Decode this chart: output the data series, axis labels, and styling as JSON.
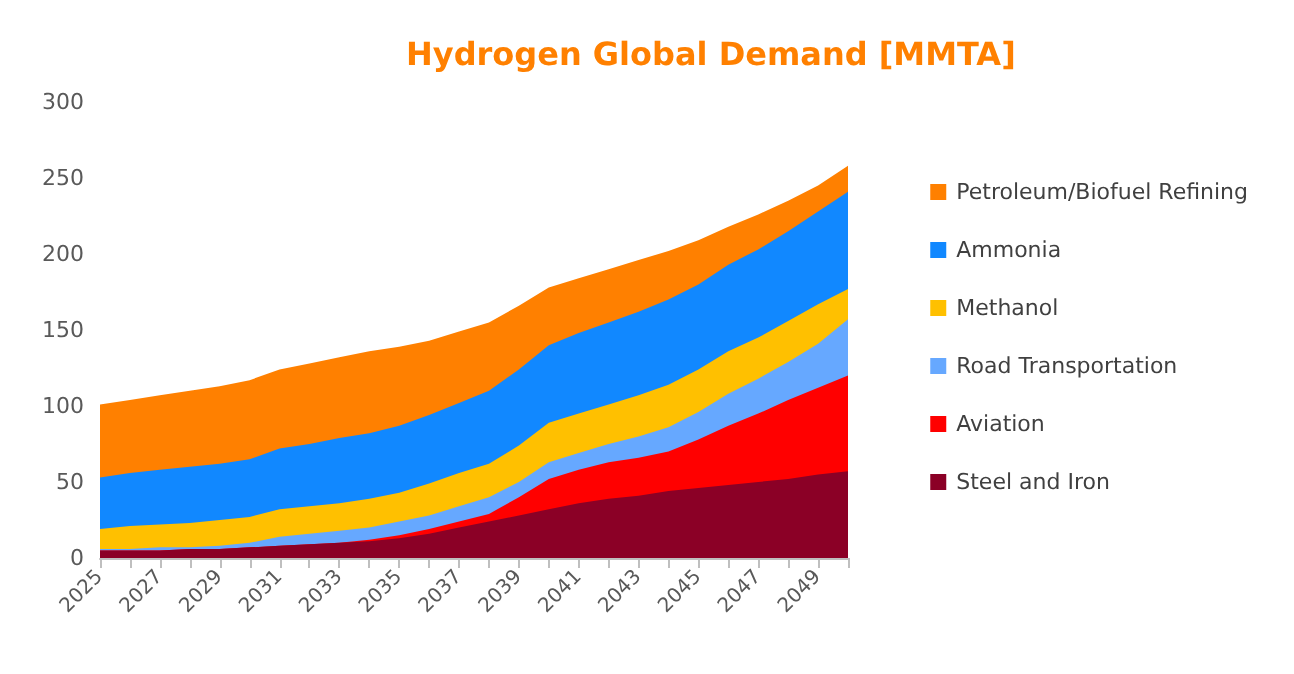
{
  "chart_data": {
    "type": "area",
    "stacked": true,
    "title": "Hydrogen Global Demand [MMTA]",
    "x": [
      2025,
      2026,
      2027,
      2028,
      2029,
      2030,
      2031,
      2032,
      2033,
      2034,
      2035,
      2036,
      2037,
      2038,
      2039,
      2040,
      2041,
      2042,
      2043,
      2044,
      2045,
      2046,
      2047,
      2048,
      2049,
      2050
    ],
    "series": [
      {
        "name": "Steel and Iron",
        "color": "#8b0026",
        "values": [
          5,
          5,
          5,
          6,
          6,
          7,
          8,
          9,
          10,
          11,
          13,
          16,
          20,
          24,
          28,
          32,
          36,
          39,
          41,
          44,
          46,
          48,
          50,
          52,
          55,
          57
        ]
      },
      {
        "name": "Aviation",
        "color": "#ff0000",
        "values": [
          0,
          0,
          0,
          0,
          0,
          0,
          0,
          0,
          0,
          1,
          2,
          3,
          4,
          5,
          12,
          20,
          22,
          24,
          25,
          26,
          32,
          39,
          45,
          52,
          57,
          63
        ]
      },
      {
        "name": "Road Transportation",
        "color": "#66a8ff",
        "values": [
          1,
          1,
          2,
          1,
          2,
          3,
          6,
          7,
          8,
          8,
          9,
          9,
          10,
          11,
          10,
          11,
          11,
          12,
          14,
          16,
          18,
          21,
          23,
          25,
          29,
          37
        ]
      },
      {
        "name": "Methanol",
        "color": "#ffc000",
        "values": [
          13,
          15,
          15,
          16,
          17,
          17,
          18,
          18,
          18,
          19,
          19,
          21,
          22,
          22,
          24,
          26,
          26,
          26,
          27,
          28,
          28,
          28,
          27,
          27,
          26,
          20
        ]
      },
      {
        "name": "Ammonia",
        "color": "#1188ff",
        "values": [
          34,
          35,
          36,
          37,
          37,
          38,
          40,
          41,
          43,
          43,
          44,
          45,
          46,
          48,
          50,
          51,
          53,
          54,
          55,
          56,
          56,
          57,
          58,
          59,
          61,
          64
        ]
      },
      {
        "name": "Petroleum/Biofuel Refining",
        "color": "#ff8000",
        "values": [
          48,
          48,
          49,
          50,
          51,
          52,
          52,
          53,
          53,
          54,
          52,
          49,
          47,
          45,
          42,
          38,
          36,
          35,
          34,
          32,
          29,
          25,
          23,
          20,
          17,
          17
        ]
      }
    ],
    "xlim": [
      2025,
      2050
    ],
    "xticks": [
      2025,
      {
        "value": 2026,
        "label": null
      },
      2027,
      {
        "value": 2028,
        "label": null
      },
      2029,
      {
        "value": 2030,
        "label": null
      },
      2031,
      {
        "value": 2032,
        "label": null
      },
      2033,
      {
        "value": 2034,
        "label": null
      },
      2035,
      {
        "value": 2036,
        "label": null
      },
      2037,
      {
        "value": 2038,
        "label": null
      },
      2039,
      {
        "value": 2040,
        "label": null
      },
      2041,
      {
        "value": 2042,
        "label": null
      },
      2043,
      {
        "value": 2044,
        "label": null
      },
      2045,
      {
        "value": 2046,
        "label": null
      },
      2047,
      {
        "value": 2048,
        "label": null
      },
      2049,
      {
        "value": 2050,
        "label": null
      }
    ],
    "ylim": [
      0,
      300
    ],
    "yticks": [
      0,
      50,
      100,
      150,
      200,
      250,
      300
    ],
    "grid": false,
    "legend": "right"
  }
}
